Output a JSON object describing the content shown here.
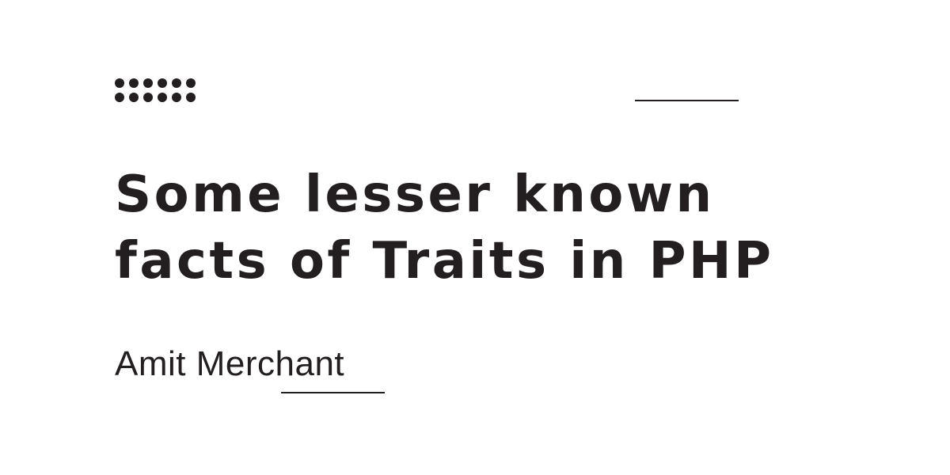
{
  "title": {
    "line1": "Some lesser known",
    "line2": "facts of Traits in PHP"
  },
  "author": "Amit Merchant",
  "colors": {
    "background": "#ffffff",
    "ink": "#231f20"
  },
  "decorations": {
    "dot_grid_icon": "dot-grid-icon",
    "accent_rule_icon": "horizontal-rule-icon"
  }
}
